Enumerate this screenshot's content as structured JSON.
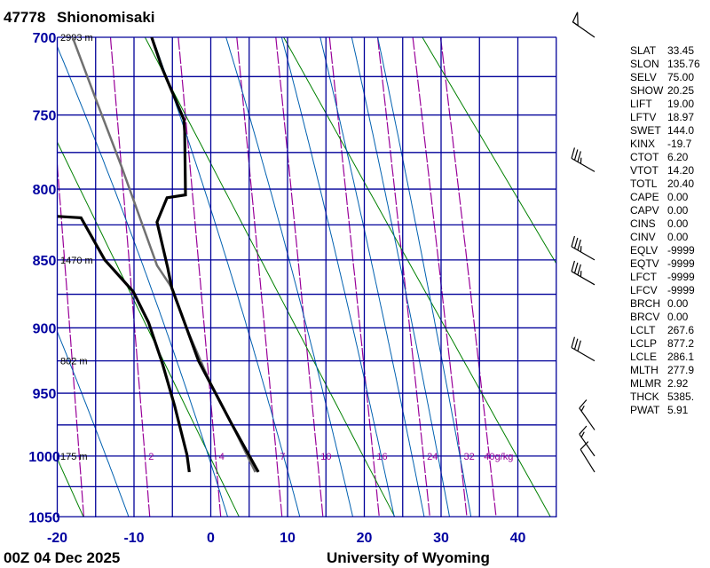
{
  "header": {
    "station_id": "47778",
    "station_name": "Shionomisaki"
  },
  "footer": {
    "time": "00Z 04 Dec 2025",
    "source": "University of Wyoming"
  },
  "stats": [
    {
      "label": "SLAT",
      "value": "33.45"
    },
    {
      "label": "SLON",
      "value": "135.76"
    },
    {
      "label": "SELV",
      "value": "75.00"
    },
    {
      "label": "SHOW",
      "value": "20.25"
    },
    {
      "label": "LIFT",
      "value": "19.00"
    },
    {
      "label": "LFTV",
      "value": "18.97"
    },
    {
      "label": "SWET",
      "value": "144.0"
    },
    {
      "label": "KINX",
      "value": "-19.7"
    },
    {
      "label": "CTOT",
      "value": "6.20"
    },
    {
      "label": "VTOT",
      "value": "14.20"
    },
    {
      "label": "TOTL",
      "value": "20.40"
    },
    {
      "label": "CAPE",
      "value": "0.00"
    },
    {
      "label": "CAPV",
      "value": "0.00"
    },
    {
      "label": "CINS",
      "value": "0.00"
    },
    {
      "label": "CINV",
      "value": "0.00"
    },
    {
      "label": "EQLV",
      "value": "-9999"
    },
    {
      "label": "EQTV",
      "value": "-9999"
    },
    {
      "label": "LFCT",
      "value": "-9999"
    },
    {
      "label": "LFCV",
      "value": "-9999"
    },
    {
      "label": "BRCH",
      "value": "0.00"
    },
    {
      "label": "BRCV",
      "value": "0.00"
    },
    {
      "label": "LCLT",
      "value": "267.6"
    },
    {
      "label": "LCLP",
      "value": "877.2"
    },
    {
      "label": "LCLE",
      "value": "286.1"
    },
    {
      "label": "MLTH",
      "value": "277.9"
    },
    {
      "label": "MLMR",
      "value": "2.92"
    },
    {
      "label": "THCK",
      "value": "5385."
    },
    {
      "label": "PWAT",
      "value": "5.91"
    }
  ],
  "chart_data": {
    "type": "line",
    "diagram": "skew-T log-p sounding",
    "xlim": [
      -20,
      45
    ],
    "ylim_hpa": [
      1050,
      700
    ],
    "x_ticks": [
      "-20",
      "-10",
      "0",
      "10",
      "20",
      "30",
      "40"
    ],
    "x_tick_values": [
      -20,
      -10,
      0,
      10,
      20,
      30,
      40
    ],
    "y_ticks": [
      "700",
      "750",
      "800",
      "850",
      "900",
      "950",
      "1000",
      "1050"
    ],
    "y_tick_values": [
      700,
      750,
      800,
      850,
      900,
      950,
      1000,
      1050
    ],
    "isotherm_step_c": 5,
    "isobar_step_hpa": 25,
    "dry_adiabats_theta_k": [
      233,
      253,
      273,
      293,
      313,
      333,
      353,
      373,
      393,
      413
    ],
    "moist_adiabats_t1050_c": [
      -10.7,
      2.2,
      11.6,
      18.5,
      23.9,
      27.8,
      31.1,
      33.9
    ],
    "mixing_ratio_lines_gkg": [
      1,
      2,
      4,
      7,
      10,
      16,
      24,
      32,
      40
    ],
    "mixing_ratio_labels": [
      "",
      "2",
      "4",
      "7",
      "10",
      "16",
      "24",
      "32",
      "40g/kg"
    ],
    "heights": [
      {
        "p": 700,
        "label": "2993 m"
      },
      {
        "p": 850,
        "label": "1470 m"
      },
      {
        "p": 925,
        "label": "802 m"
      },
      {
        "p": 1000,
        "label": "175 m"
      }
    ],
    "temperature": [
      [
        1013,
        6.2
      ],
      [
        974,
        2.7
      ],
      [
        943,
        0.0
      ],
      [
        925,
        -1.6
      ],
      [
        901,
        -3.1
      ],
      [
        870,
        -5.1
      ],
      [
        856,
        -5.6
      ],
      [
        823,
        -7.0
      ],
      [
        806,
        -5.7
      ],
      [
        804,
        -3.3
      ],
      [
        761,
        -3.4
      ],
      [
        753,
        -3.5
      ],
      [
        720,
        -6.3
      ],
      [
        700,
        -7.7
      ]
    ],
    "dewpoint": [
      [
        1013,
        -2.8
      ],
      [
        999,
        -3.1
      ],
      [
        960,
        -4.7
      ],
      [
        927,
        -6.3
      ],
      [
        896,
        -8.1
      ],
      [
        873,
        -10.1
      ],
      [
        850,
        -13.8
      ],
      [
        820,
        -16.9
      ],
      [
        819,
        -20.0
      ],
      [
        818,
        -22.0
      ]
    ],
    "parcel": [
      [
        1013,
        5.8
      ],
      [
        974,
        2.7
      ],
      [
        943,
        0.0
      ],
      [
        901,
        -3.1
      ],
      [
        870,
        -5.1
      ],
      [
        854,
        -7.0
      ],
      [
        785,
        -11.6
      ],
      [
        742,
        -14.8
      ],
      [
        700,
        -18.0
      ]
    ],
    "wind_barbs": [
      {
        "p": 700,
        "dir": 305,
        "kt": 50
      },
      {
        "p": 788,
        "dir": 300,
        "kt": 35
      },
      {
        "p": 850,
        "dir": 300,
        "kt": 35
      },
      {
        "p": 868,
        "dir": 300,
        "kt": 35
      },
      {
        "p": 925,
        "dir": 300,
        "kt": 30
      },
      {
        "p": 979,
        "dir": 325,
        "kt": 15
      },
      {
        "p": 1000,
        "dir": 325,
        "kt": 15
      },
      {
        "p": 1013,
        "dir": 328,
        "kt": 10
      }
    ],
    "colors": {
      "grid": "#000099",
      "dry_adiabat": "#008000",
      "moist_adiabat": "#0060b0",
      "mixing_ratio": "#990099",
      "profile": "#000000",
      "parcel": "#707070"
    }
  }
}
